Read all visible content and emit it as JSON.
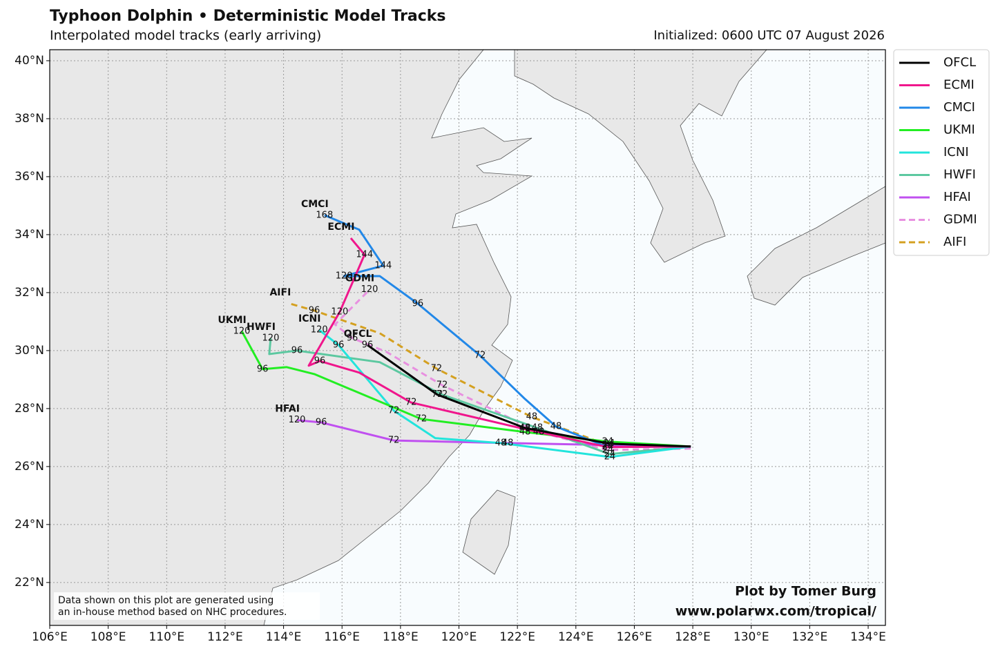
{
  "chart_data": {
    "type": "track",
    "title": "Typhoon Dolphin • Deterministic Model Tracks",
    "subtitle": "Interpolated model tracks (early arriving)",
    "initialized": "Initialized: 0600 UTC 07 August 2026",
    "credit": [
      "Plot by Tomer Burg",
      "www.polarwx.com/tropical/"
    ],
    "note": [
      "Data shown on this plot are generated using",
      "an in-house method based on NHC procedures."
    ],
    "xlim": [
      106,
      134.59
    ],
    "ylim": [
      20.52,
      40.38
    ],
    "grid": true,
    "legend": "upper right",
    "xticks": [
      {
        "value": 106,
        "label": "106°E"
      },
      {
        "value": 108,
        "label": "108°E"
      },
      {
        "value": 110,
        "label": "110°E"
      },
      {
        "value": 112,
        "label": "112°E"
      },
      {
        "value": 114,
        "label": "114°E"
      },
      {
        "value": 116,
        "label": "116°E"
      },
      {
        "value": 118,
        "label": "118°E"
      },
      {
        "value": 120,
        "label": "120°E"
      },
      {
        "value": 122,
        "label": "122°E"
      },
      {
        "value": 124,
        "label": "124°E"
      },
      {
        "value": 126,
        "label": "126°E"
      },
      {
        "value": 128,
        "label": "128°E"
      },
      {
        "value": 130,
        "label": "130°E"
      },
      {
        "value": 132,
        "label": "132°E"
      },
      {
        "value": 134,
        "label": "134°E"
      }
    ],
    "yticks": [
      {
        "value": 22,
        "label": "22°N"
      },
      {
        "value": 24,
        "label": "24°N"
      },
      {
        "value": 26,
        "label": "26°N"
      },
      {
        "value": 28,
        "label": "28°N"
      },
      {
        "value": 30,
        "label": "30°N"
      },
      {
        "value": 32,
        "label": "32°N"
      },
      {
        "value": 34,
        "label": "34°N"
      },
      {
        "value": 36,
        "label": "36°N"
      },
      {
        "value": 38,
        "label": "38°N"
      },
      {
        "value": 40,
        "label": "40°N"
      }
    ],
    "series": [
      {
        "name": "OFCL",
        "color": "#000000",
        "dashed": false,
        "x": [
          127.93,
          125.14,
          122.26,
          119.26,
          116.87
        ],
        "values": [
          26.69,
          26.79,
          27.33,
          28.48,
          30.19
        ],
        "hours": [
          null,
          24,
          48,
          72,
          96
        ]
      },
      {
        "name": "ECMI",
        "color": "#f0168c",
        "dashed": false,
        "x": [
          127.93,
          125.09,
          122.26,
          118.36,
          116.59,
          115.24,
          114.86,
          115.92,
          116.77,
          116.3
        ],
        "values": [
          26.69,
          26.67,
          27.29,
          28.21,
          29.24,
          29.64,
          29.48,
          31.33,
          33.31,
          33.88
        ],
        "hours": [
          null,
          24,
          48,
          72,
          null,
          96,
          null,
          120,
          144,
          null
        ]
      },
      {
        "name": "CMCI",
        "color": "#2288e8",
        "dashed": false,
        "x": [
          127.93,
          125.09,
          123.32,
          122.26,
          120.72,
          118.59,
          117.29,
          116.07,
          117.41,
          116.59,
          115.4
        ],
        "values": [
          26.69,
          26.67,
          27.38,
          28.33,
          29.83,
          31.62,
          32.57,
          32.57,
          32.93,
          34.17,
          34.67
        ],
        "hours": [
          null,
          24,
          48,
          null,
          72,
          96,
          null,
          120,
          144,
          null,
          168
        ]
      },
      {
        "name": "UKMI",
        "color": "#22ee22",
        "dashed": false,
        "x": [
          127.93,
          125.09,
          122.26,
          118.71,
          115.05,
          114.1,
          113.28,
          112.57
        ],
        "values": [
          26.69,
          26.86,
          27.19,
          27.64,
          29.19,
          29.43,
          29.36,
          30.67
        ],
        "hours": [
          null,
          24,
          48,
          72,
          null,
          null,
          96,
          120
        ]
      },
      {
        "name": "ICNI",
        "color": "#22e4dc",
        "dashed": false,
        "x": [
          127.93,
          125.16,
          121.43,
          119.19,
          117.77,
          115.88,
          115.22
        ],
        "values": [
          26.69,
          26.33,
          26.81,
          26.98,
          27.93,
          30.19,
          30.71
        ],
        "hours": [
          null,
          24,
          48,
          null,
          72,
          96,
          120
        ]
      },
      {
        "name": "HWFI",
        "color": "#5cc8a0",
        "dashed": false,
        "x": [
          127.93,
          125.16,
          122.68,
          119.42,
          117.29,
          114.46,
          113.51,
          113.56
        ],
        "values": [
          26.69,
          26.43,
          27.33,
          28.48,
          29.6,
          30.0,
          29.88,
          30.43
        ],
        "hours": [
          null,
          24,
          48,
          72,
          null,
          96,
          null,
          120
        ]
      },
      {
        "name": "HFAI",
        "color": "#c050f0",
        "dashed": false,
        "x": [
          127.93,
          125.09,
          121.67,
          117.77,
          115.29,
          114.46
        ],
        "values": [
          26.69,
          26.74,
          26.81,
          26.9,
          27.52,
          27.6
        ],
        "hours": [
          null,
          24,
          48,
          72,
          96,
          120
        ]
      },
      {
        "name": "GDMI",
        "color": "#e890e0",
        "dashed": true,
        "x": [
          127.93,
          125.09,
          122.73,
          119.42,
          117.53,
          116.35,
          115.76,
          116.94
        ],
        "values": [
          26.62,
          26.57,
          27.19,
          28.81,
          29.95,
          30.43,
          30.9,
          32.1
        ],
        "hours": [
          null,
          24,
          48,
          72,
          null,
          96,
          null,
          120
        ]
      },
      {
        "name": "AIFI",
        "color": "#d4a020",
        "dashed": true,
        "x": [
          127.93,
          125.09,
          122.49,
          119.23,
          117.29,
          115.05,
          114.22
        ],
        "values": [
          26.69,
          26.74,
          27.71,
          29.38,
          30.6,
          31.38,
          31.62
        ],
        "hours": [
          null,
          24,
          48,
          72,
          null,
          96,
          null
        ]
      }
    ]
  }
}
